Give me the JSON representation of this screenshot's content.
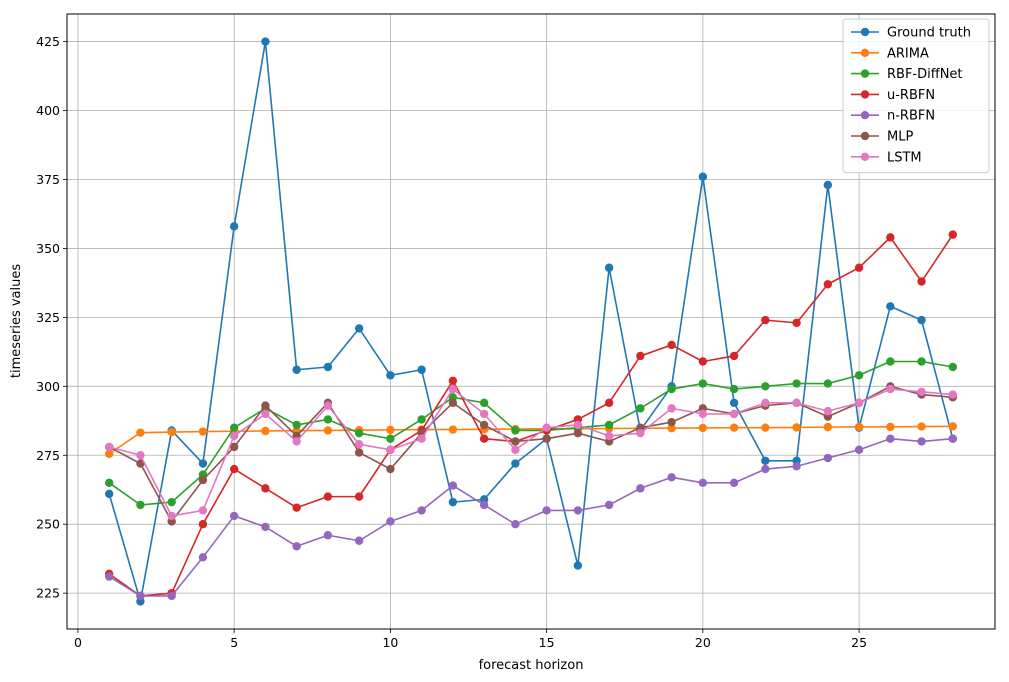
{
  "chart_data": {
    "type": "line",
    "title": "",
    "xlabel": "forecast horizon",
    "ylabel": "timeseries values",
    "xlim": [
      -0.35,
      29.35
    ],
    "ylim": [
      212,
      435
    ],
    "xticks": [
      0,
      5,
      10,
      15,
      20,
      25
    ],
    "yticks": [
      225,
      250,
      275,
      300,
      325,
      350,
      375,
      400,
      425
    ],
    "grid": true,
    "legend_position": "top-right",
    "x": [
      1,
      2,
      3,
      4,
      5,
      6,
      7,
      8,
      9,
      10,
      11,
      12,
      13,
      14,
      15,
      16,
      17,
      18,
      19,
      20,
      21,
      22,
      23,
      24,
      25,
      26,
      27,
      28
    ],
    "series": [
      {
        "name": "Ground truth",
        "color": "#1f77b4",
        "values": [
          261,
          222,
          284,
          272,
          358,
          425,
          306,
          307,
          321,
          304,
          306,
          258,
          259,
          272,
          281,
          235,
          343,
          284,
          300,
          376,
          294,
          273,
          273,
          373,
          285,
          329,
          324,
          281
        ]
      },
      {
        "name": "ARIMA",
        "color": "#ff7f0e",
        "values": [
          275.5,
          283.2,
          283.4,
          283.6,
          283.7,
          283.8,
          283.9,
          284,
          284.1,
          284.2,
          284.3,
          284.3,
          284.4,
          284.5,
          284.6,
          284.6,
          284.7,
          284.8,
          284.8,
          284.9,
          285,
          285,
          285.1,
          285.2,
          285.3,
          285.3,
          285.4,
          285.5
        ]
      },
      {
        "name": "RBF-DiffNet",
        "color": "#2ca02c",
        "values": [
          265,
          257,
          258,
          268,
          285,
          292,
          286,
          288,
          283,
          281,
          288,
          296,
          294,
          284,
          284,
          285,
          286,
          292,
          299,
          301,
          299,
          300,
          301,
          301,
          304,
          309,
          309,
          307
        ]
      },
      {
        "name": "u-RBFN",
        "color": "#d62728",
        "values": [
          232,
          224,
          225,
          250,
          270,
          263,
          256,
          260,
          260,
          277,
          284,
          302,
          281,
          280,
          284,
          288,
          294,
          311,
          315,
          309,
          311,
          324,
          323,
          337,
          343,
          354,
          338,
          355
        ]
      },
      {
        "name": "n-RBFN",
        "color": "#9467bd",
        "values": [
          231,
          224,
          224,
          238,
          253,
          249,
          242,
          246,
          244,
          251,
          255,
          264,
          257,
          250,
          255,
          255,
          257,
          263,
          267,
          265,
          265,
          270,
          271,
          274,
          277,
          281,
          280,
          281
        ]
      },
      {
        "name": "MLP",
        "color": "#8c564b",
        "values": [
          278,
          272,
          251,
          266,
          278,
          293,
          282,
          294,
          276,
          270,
          283,
          294,
          286,
          280,
          281,
          283,
          280,
          285,
          287,
          292,
          290,
          293,
          294,
          289,
          294,
          300,
          297,
          296
        ]
      },
      {
        "name": "LSTM",
        "color": "#e377c2",
        "values": [
          278,
          275,
          253,
          255,
          282,
          290,
          280,
          293,
          279,
          277,
          281,
          299,
          290,
          277,
          285,
          286,
          282,
          283,
          292,
          290,
          290,
          294,
          294,
          291,
          294,
          299,
          298,
          297
        ]
      }
    ]
  }
}
